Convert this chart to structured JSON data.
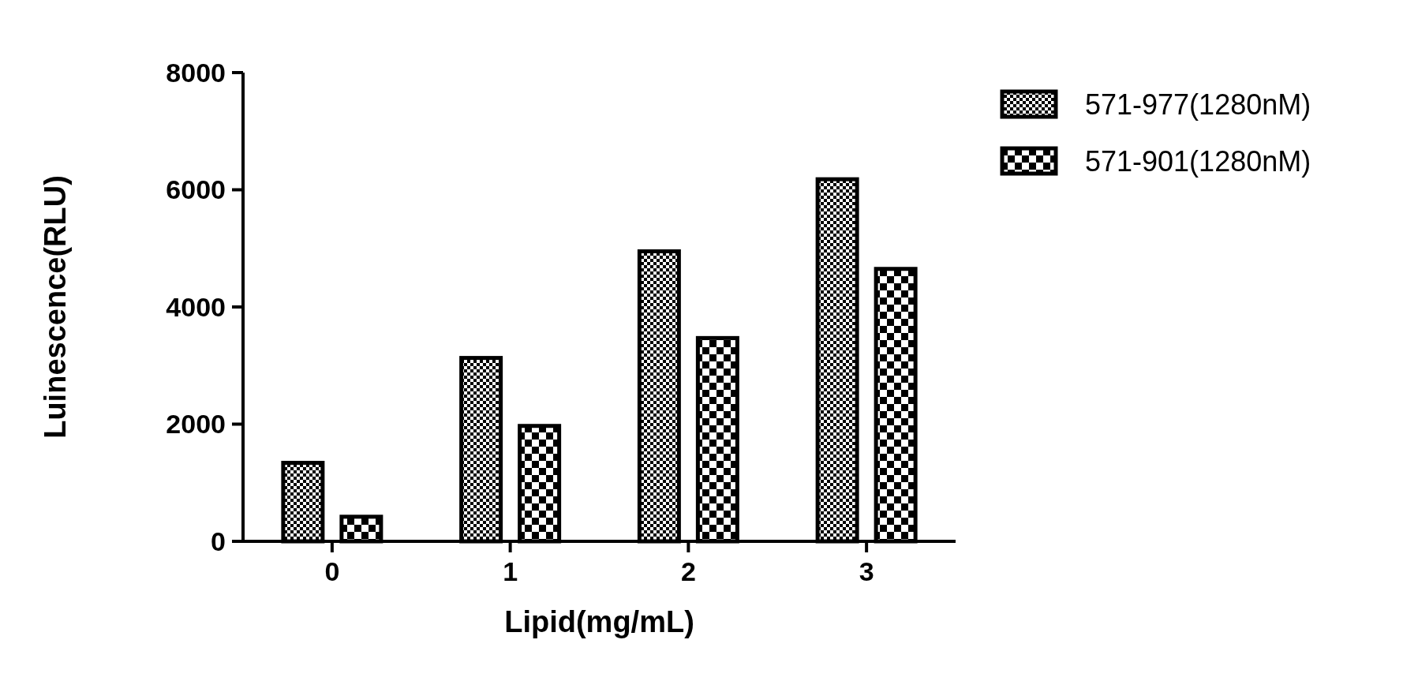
{
  "chart_data": {
    "type": "bar",
    "xlabel": "Lipid(mg/mL)",
    "ylabel": "Luinescence(RLU)",
    "categories": [
      "0",
      "1",
      "2",
      "3"
    ],
    "series": [
      {
        "name": "571-977(1280nM)",
        "color": "#000000",
        "values": [
          1340,
          3130,
          4950,
          6180
        ]
      },
      {
        "name": "571-901(1280nM)",
        "color": "#000000",
        "values": [
          420,
          1970,
          3470,
          4650
        ]
      }
    ],
    "ylim": [
      0,
      8000
    ],
    "yticks": [
      0,
      2000,
      4000,
      6000,
      8000
    ],
    "grid": false,
    "legend": "top right"
  }
}
